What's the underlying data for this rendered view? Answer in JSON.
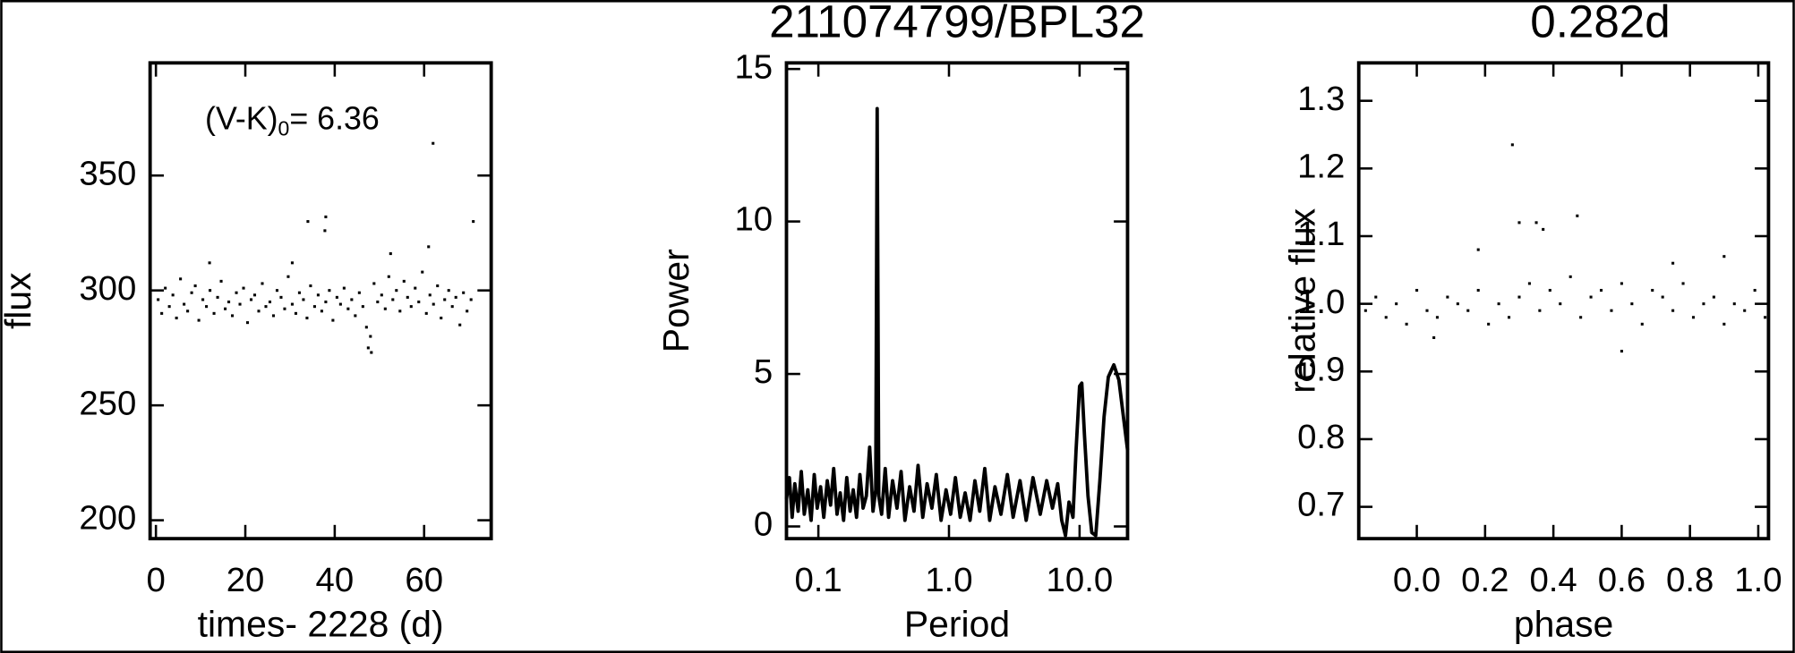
{
  "chart_data": [
    {
      "type": "scatter",
      "xlabel": "times- 2228 (d)",
      "ylabel": "flux",
      "annotation": {
        "text": "(V-K)",
        "subscript": "0",
        "suffix": "= 6.36"
      },
      "xlim": [
        -1.3,
        75
      ],
      "ylim": [
        192,
        399
      ],
      "xticks": [
        0,
        20,
        40,
        60
      ],
      "yticks": [
        200,
        250,
        300,
        350
      ],
      "series": [
        {
          "color": "#000000",
          "x": [
            0.5,
            1.3,
            2.1,
            3.0,
            3.8,
            4.6,
            5.5,
            6.3,
            7.1,
            8.0,
            8.8,
            9.6,
            10.5,
            11.3,
            12.1,
            13.0,
            13.8,
            14.6,
            15.5,
            16.3,
            17.1,
            18.0,
            18.8,
            19.6,
            20.5,
            21.3,
            22.1,
            23.0,
            23.8,
            24.6,
            25.5,
            26.3,
            27.1,
            28.0,
            28.8,
            29.6,
            30.5,
            31.3,
            32.1,
            33.0,
            33.8,
            34.6,
            35.5,
            36.3,
            37.1,
            38.0,
            38.8,
            39.6,
            40.5,
            41.3,
            42.1,
            43.0,
            43.8,
            44.6,
            45.5,
            46.3,
            47.1,
            48.0,
            48.8,
            49.6,
            50.5,
            51.3,
            52.1,
            53.0,
            53.8,
            54.6,
            55.5,
            56.3,
            57.1,
            58.0,
            58.8,
            59.6,
            60.5,
            61.3,
            62.1,
            63.0,
            63.8,
            64.6,
            65.5,
            66.3,
            67.1,
            68.0,
            68.8,
            69.6,
            70.5,
            62.0,
            38.0,
            34.0,
            37.8,
            52.5,
            61.0,
            71.0,
            47.5,
            48.2,
            30.5,
            12.0
          ],
          "values": [
            296,
            290,
            301,
            293,
            298,
            288,
            305,
            294,
            291,
            299,
            302,
            287,
            296,
            293,
            300,
            290,
            297,
            304,
            292,
            295,
            289,
            299,
            294,
            301,
            286,
            296,
            298,
            291,
            303,
            293,
            295,
            289,
            300,
            297,
            292,
            306,
            294,
            290,
            299,
            296,
            288,
            302,
            293,
            298,
            291,
            295,
            300,
            287,
            297,
            294,
            301,
            292,
            296,
            289,
            299,
            293,
            284,
            280,
            303,
            295,
            298,
            292,
            306,
            296,
            300,
            291,
            304,
            297,
            293,
            301,
            295,
            308,
            290,
            298,
            294,
            302,
            288,
            296,
            300,
            293,
            297,
            285,
            299,
            291,
            296,
            364,
            332,
            330,
            326,
            316,
            319,
            330,
            275,
            273,
            312,
            312
          ]
        }
      ]
    },
    {
      "type": "line",
      "title": "211074799/BPL32",
      "xlabel": "Period",
      "ylabel": "Power",
      "xlog": true,
      "xlim": [
        0.057,
        23.3
      ],
      "ylim": [
        -0.4,
        15.2
      ],
      "xticks": [
        {
          "value": 0.1,
          "label": "0.1"
        },
        {
          "value": 1,
          "label": "1.0"
        },
        {
          "value": 10,
          "label": "10.0"
        }
      ],
      "yticks": [
        0,
        5,
        10,
        15
      ],
      "series": [
        {
          "color": "#000000",
          "x": [
            0.057,
            0.06,
            0.063,
            0.066,
            0.07,
            0.074,
            0.078,
            0.083,
            0.088,
            0.093,
            0.098,
            0.104,
            0.11,
            0.117,
            0.124,
            0.131,
            0.139,
            0.147,
            0.156,
            0.165,
            0.175,
            0.185,
            0.196,
            0.208,
            0.22,
            0.233,
            0.247,
            0.262,
            0.275,
            0.282,
            0.29,
            0.305,
            0.325,
            0.345,
            0.37,
            0.4,
            0.43,
            0.46,
            0.5,
            0.54,
            0.58,
            0.63,
            0.68,
            0.74,
            0.8,
            0.87,
            0.95,
            1.03,
            1.12,
            1.22,
            1.33,
            1.45,
            1.58,
            1.72,
            1.88,
            2.05,
            2.25,
            2.5,
            2.8,
            3.1,
            3.5,
            3.9,
            4.4,
            5.0,
            5.6,
            6.2,
            6.8,
            7.3,
            7.8,
            8.3,
            8.9,
            9.4,
            10.0,
            10.4,
            10.9,
            11.6,
            12.4,
            13.3,
            14.3,
            15.4,
            16.6,
            18.3,
            20.0,
            21.8,
            23.3
          ],
          "values": [
            0.9,
            1.6,
            0.3,
            1.4,
            0.5,
            1.8,
            0.4,
            1.2,
            0.2,
            1.7,
            0.6,
            1.3,
            0.3,
            1.5,
            0.7,
            1.9,
            0.4,
            1.1,
            0.2,
            1.6,
            0.5,
            1.2,
            0.3,
            1.7,
            0.6,
            1.0,
            2.6,
            0.5,
            1.2,
            13.7,
            1.0,
            0.4,
            1.9,
            0.3,
            1.5,
            0.6,
            1.8,
            0.2,
            1.3,
            0.5,
            2.0,
            0.3,
            1.4,
            0.6,
            1.7,
            0.2,
            1.2,
            0.4,
            1.6,
            0.3,
            1.1,
            0.2,
            1.5,
            0.5,
            1.9,
            0.2,
            1.3,
            0.4,
            1.7,
            0.3,
            1.5,
            0.2,
            1.6,
            0.4,
            1.5,
            0.6,
            1.4,
            0.2,
            -0.3,
            0.8,
            0.3,
            2.5,
            4.6,
            4.7,
            3.0,
            1.0,
            -0.2,
            -0.3,
            1.5,
            3.6,
            4.9,
            5.3,
            4.8,
            3.5,
            2.5
          ]
        }
      ]
    },
    {
      "type": "scatter",
      "title": "0.282d",
      "xlabel": "phase",
      "ylabel": "relative flux",
      "xlim": [
        -0.17,
        1.03
      ],
      "ylim": [
        0.653,
        1.356
      ],
      "xticks": [
        {
          "value": 0,
          "label": "0.0"
        },
        0.2,
        0.4,
        0.6,
        0.8,
        {
          "value": 1,
          "label": "1.0"
        }
      ],
      "yticks": [
        0.7,
        0.8,
        0.9,
        {
          "value": 1,
          "label": "1.0"
        },
        1.1,
        1.2,
        1.3
      ],
      "series": [
        {
          "color": "#000000",
          "x": [
            -0.15,
            -0.12,
            -0.09,
            -0.06,
            -0.03,
            0.0,
            0.03,
            0.06,
            0.09,
            0.12,
            0.15,
            0.18,
            0.21,
            0.24,
            0.27,
            0.3,
            0.33,
            0.36,
            0.39,
            0.42,
            0.45,
            0.48,
            0.51,
            0.54,
            0.57,
            0.6,
            0.63,
            0.66,
            0.69,
            0.72,
            0.75,
            0.78,
            0.81,
            0.84,
            0.87,
            0.9,
            0.93,
            0.96,
            0.99,
            1.02,
            0.28,
            0.3,
            0.35,
            0.47,
            0.37,
            0.18,
            0.6,
            0.9,
            0.05,
            0.75
          ],
          "values": [
            0.99,
            1.01,
            0.98,
            1.0,
            0.97,
            1.02,
            0.99,
            0.98,
            1.01,
            1.0,
            0.99,
            1.02,
            0.97,
            1.0,
            0.98,
            1.01,
            1.03,
            0.99,
            1.02,
            1.0,
            1.04,
            0.98,
            1.01,
            1.02,
            0.99,
            1.03,
            1.0,
            0.97,
            1.02,
            1.01,
            0.99,
            1.03,
            0.98,
            1.0,
            1.01,
            0.97,
            1.0,
            0.99,
            1.02,
            0.98,
            1.235,
            1.12,
            1.12,
            1.13,
            1.11,
            1.08,
            0.93,
            1.07,
            0.95,
            1.06
          ]
        }
      ]
    }
  ]
}
